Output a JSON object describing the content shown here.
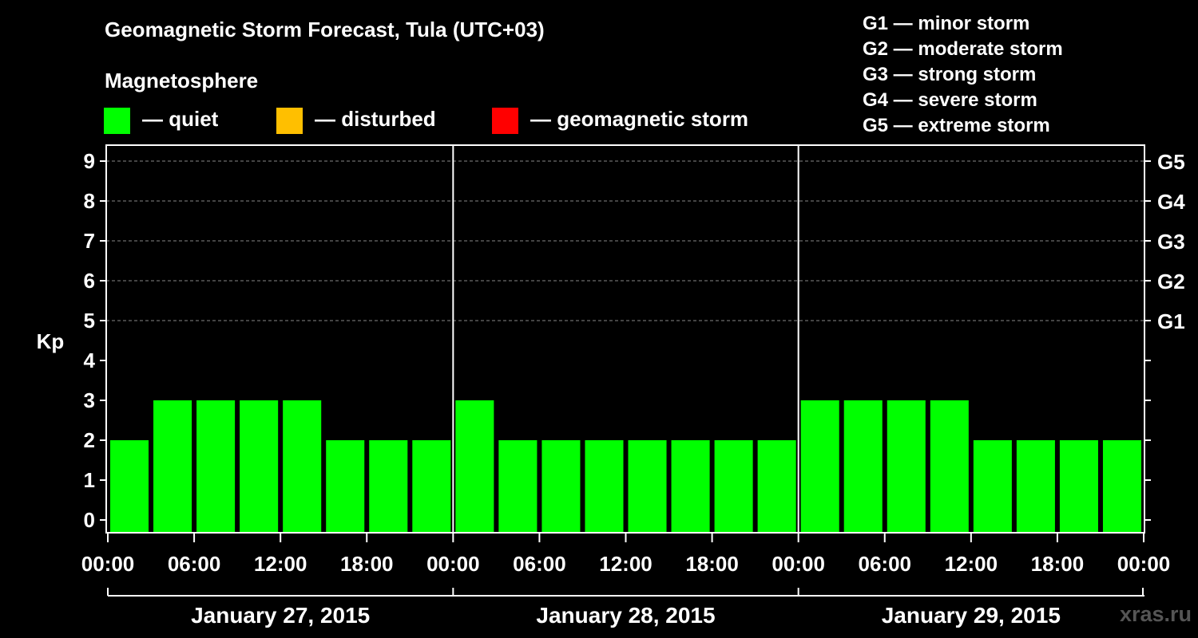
{
  "title": "Geomagnetic Storm Forecast, Tula (UTC+03)",
  "legend": {
    "heading": "Magnetosphere",
    "items": [
      {
        "label": "— quiet",
        "color": "#00ff00"
      },
      {
        "label": "— disturbed",
        "color": "#ffbf00"
      },
      {
        "label": "— geomagnetic storm",
        "color": "#ff0000"
      }
    ]
  },
  "g_scale": [
    "G1 — minor storm",
    "G2 — moderate storm",
    "G3 — strong storm",
    "G4 — severe storm",
    "G5 — extreme storm"
  ],
  "watermark": "xras.ru",
  "chart_data": {
    "type": "bar",
    "ylabel": "Kp",
    "ylim": [
      0,
      9
    ],
    "yticks": [
      "0",
      "1",
      "2",
      "3",
      "4",
      "5",
      "6",
      "7",
      "8",
      "9"
    ],
    "right_axis_labels": [
      {
        "kp": 5,
        "label": "G1"
      },
      {
        "kp": 6,
        "label": "G2"
      },
      {
        "kp": 7,
        "label": "G3"
      },
      {
        "kp": 8,
        "label": "G4"
      },
      {
        "kp": 9,
        "label": "G5"
      }
    ],
    "grid": "dashed horizontal at Kp 5-9",
    "xtick_labels": [
      "00:00",
      "06:00",
      "12:00",
      "18:00",
      "00:00",
      "06:00",
      "12:00",
      "18:00",
      "00:00",
      "06:00",
      "12:00",
      "18:00",
      "00:00"
    ],
    "days": [
      "January 27, 2015",
      "January 28, 2015",
      "January 29, 2015"
    ],
    "bar_color": "#00ff00",
    "values": [
      2,
      3,
      3,
      3,
      3,
      2,
      2,
      2,
      3,
      2,
      2,
      2,
      2,
      2,
      2,
      2,
      3,
      3,
      3,
      3,
      2,
      2,
      2,
      2
    ]
  }
}
